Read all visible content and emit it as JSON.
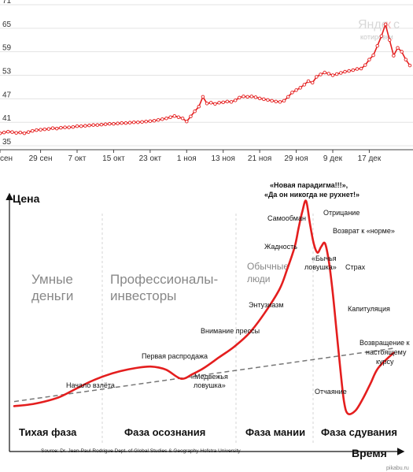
{
  "chart_data": [
    {
      "type": "line",
      "title": "",
      "watermark": {
        "brand_a": "Янде",
        "brand_b": "к",
        "brand_c": "с",
        "sub": "котировки"
      },
      "y_ticks": [
        35,
        41,
        47,
        53,
        59,
        65,
        71
      ],
      "ylim": [
        34,
        71
      ],
      "x_tick_labels": [
        "сен",
        "29 сен",
        "7 окт",
        "15 окт",
        "23 окт",
        "1 ноя",
        "13 ноя",
        "21 ноя",
        "29 ноя",
        "9 дек",
        "17 дек"
      ],
      "x_tick_index": [
        0,
        10,
        19,
        28,
        37,
        46,
        55,
        64,
        73,
        82,
        91
      ],
      "series": [
        {
          "color": "#e41e1e",
          "values": [
            38.2,
            38.4,
            38.6,
            38.5,
            38.3,
            38.4,
            38.2,
            38.5,
            38.8,
            39.0,
            39.1,
            39.2,
            39.3,
            39.5,
            39.4,
            39.6,
            39.7,
            39.7,
            39.8,
            40.0,
            40.0,
            40.1,
            40.2,
            40.3,
            40.3,
            40.4,
            40.5,
            40.6,
            40.6,
            40.7,
            40.8,
            40.8,
            40.9,
            41.0,
            41.0,
            41.1,
            41.2,
            41.3,
            41.4,
            41.6,
            41.8,
            42.0,
            42.3,
            42.6,
            42.3,
            42.0,
            41.2,
            42.5,
            43.8,
            45.0,
            47.5,
            45.8,
            46.0,
            45.7,
            46.0,
            46.1,
            46.3,
            46.2,
            46.6,
            47.3,
            47.6,
            47.5,
            47.6,
            47.4,
            47.1,
            46.9,
            46.7,
            46.5,
            46.3,
            46.2,
            46.5,
            47.5,
            48.6,
            49.2,
            49.8,
            50.6,
            51.5,
            51.1,
            52.6,
            53.2,
            53.7,
            53.4,
            53.0,
            53.3,
            53.6,
            53.9,
            54.1,
            54.3,
            54.6,
            54.7,
            55.6,
            57.0,
            58.1,
            60.5,
            63.0,
            66.0,
            62.0,
            58.0,
            60.0,
            59.0,
            57.0,
            55.5
          ]
        }
      ]
    },
    {
      "type": "line",
      "title": "",
      "ylabel": "Цена",
      "xlabel": "Время",
      "zones": [
        {
          "label_1": "Умные",
          "label_2": "деньги"
        },
        {
          "label_1": "Профессионалы-",
          "label_2": "инвесторы"
        },
        {
          "label_1": "Обычные",
          "label_2": "люди"
        }
      ],
      "phases": [
        "Тихая фаза",
        "Фаза осознания",
        "Фаза мании",
        "Фаза сдувания"
      ],
      "annotations": {
        "takeoff": "Начало взлёта",
        "first_selloff": "Первая распродажа",
        "bear_trap_1": "«Медвежья",
        "bear_trap_2": "ловушка»",
        "media": "Внимание прессы",
        "enthusiasm": "Энтузиазм",
        "greed": "Жадность",
        "delusion": "Самообман",
        "paradigm_1": "«Новая парадигма!!!»,",
        "paradigm_2": "«Да он никогда не рухнет!»",
        "denial": "Отрицание",
        "return_normal": "Возврат к «норме»",
        "bull_trap_1": "«Бычья",
        "bull_trap_2": "ловушка»",
        "fear": "Страх",
        "capitulation": "Капитуляция",
        "despair": "Отчаяние",
        "return_mean_1": "Возвращение к",
        "return_mean_2": "настоящему",
        "return_mean_3": "курсу"
      },
      "source": "Source: Dr. Jean-Paul Rodrigue Dept. of Global Studies & Geography Hofstra University",
      "site": "pikabu.ru",
      "curve": {
        "color": "#e41e1e",
        "x": [
          0,
          4,
          8,
          12,
          16,
          20,
          24,
          28,
          32,
          36,
          40,
          44,
          47,
          50,
          54,
          58,
          62,
          66,
          70,
          72,
          74,
          75,
          76,
          77,
          78,
          79,
          80,
          81,
          82,
          83,
          84,
          85,
          86,
          87,
          88,
          90,
          92,
          94,
          96,
          100
        ],
        "y": [
          5,
          6,
          8,
          11,
          16,
          21,
          25,
          28,
          30,
          31,
          29,
          23,
          26,
          30,
          37,
          44,
          53,
          66,
          82,
          95,
          110,
          122,
          133,
          140,
          125,
          112,
          106,
          110,
          112,
          100,
          80,
          55,
          30,
          8,
          0,
          2,
          10,
          20,
          30,
          40
        ]
      },
      "trend": {
        "x": [
          0,
          100
        ],
        "y": [
          8,
          43
        ]
      }
    }
  ]
}
